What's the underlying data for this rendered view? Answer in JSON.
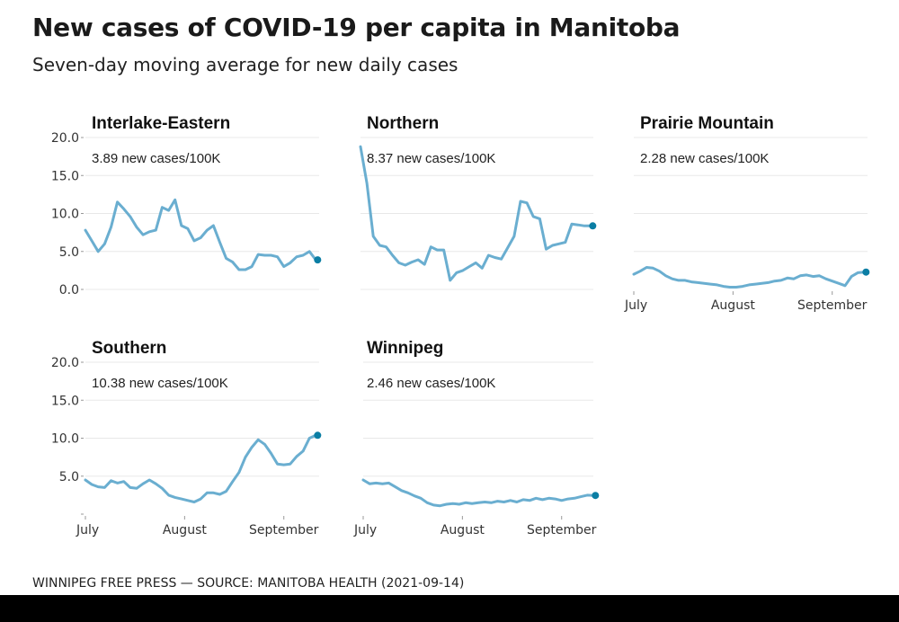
{
  "header": {
    "title": "New cases of COVID-19 per capita in Manitoba",
    "subtitle": "Seven-day moving average for new daily cases"
  },
  "footer": {
    "source": "WINNIPEG FREE PRESS — SOURCE: MANITOBA HEALTH (2021-09-14)"
  },
  "chart_data": {
    "type": "line",
    "layout": "small-multiples",
    "ylim": [
      0,
      20
    ],
    "yticks": [
      "0.0",
      "5.0",
      "10.0",
      "15.0",
      "20.0"
    ],
    "ytick_values": [
      0,
      5,
      10,
      15,
      20
    ],
    "xticks": [
      "July",
      "August",
      "September"
    ],
    "xtick_days": [
      0,
      31,
      62
    ],
    "x_unit": "days since July 1, 2021",
    "x": [
      0,
      2,
      4,
      6,
      8,
      10,
      12,
      14,
      16,
      18,
      20,
      22,
      24,
      26,
      28,
      30,
      32,
      34,
      36,
      38,
      40,
      42,
      44,
      46,
      48,
      50,
      52,
      54,
      56,
      58,
      60,
      62,
      64,
      66,
      68,
      70,
      72
    ],
    "grid": true,
    "line_color": "#6aaed0",
    "endpoint_color": "#0b7ea4",
    "panels": [
      {
        "name": "Interlake-Eastern",
        "annotation": "3.89 new cases/100K",
        "latest": 3.89,
        "values": [
          7.8,
          6.4,
          5.0,
          6.0,
          8.2,
          11.5,
          10.6,
          9.6,
          8.2,
          7.2,
          7.6,
          7.8,
          10.8,
          10.4,
          11.8,
          8.4,
          8.0,
          6.4,
          6.8,
          7.8,
          8.4,
          6.2,
          4.1,
          3.6,
          2.6,
          2.6,
          3.0,
          4.6,
          4.5,
          4.5,
          4.3,
          3.0,
          3.5,
          4.3,
          4.5,
          5.0,
          3.89
        ],
        "show_y_axis": true,
        "show_x_axis": false
      },
      {
        "name": "Northern",
        "annotation": "8.37 new cases/100K",
        "latest": 8.37,
        "values": [
          18.8,
          14.0,
          7.0,
          5.8,
          5.6,
          4.5,
          3.5,
          3.2,
          3.6,
          3.9,
          3.3,
          5.6,
          5.2,
          5.2,
          1.2,
          2.2,
          2.5,
          3.0,
          3.5,
          2.8,
          4.5,
          4.2,
          4.0,
          5.5,
          7.0,
          11.6,
          11.4,
          9.6,
          9.3,
          5.3,
          5.8,
          6.0,
          6.2,
          8.6,
          8.5,
          8.37,
          8.37
        ],
        "show_y_axis": false,
        "show_x_axis": false
      },
      {
        "name": "Prairie Mountain",
        "annotation": "2.28 new cases/100K",
        "latest": 2.28,
        "values": [
          2.0,
          2.4,
          2.9,
          2.8,
          2.4,
          1.8,
          1.4,
          1.2,
          1.2,
          1.0,
          0.9,
          0.8,
          0.7,
          0.6,
          0.4,
          0.3,
          0.3,
          0.4,
          0.6,
          0.7,
          0.8,
          0.9,
          1.1,
          1.2,
          1.5,
          1.4,
          1.8,
          1.9,
          1.7,
          1.8,
          1.4,
          1.1,
          0.8,
          0.5,
          1.7,
          2.2,
          2.28
        ],
        "show_y_axis": false,
        "show_x_axis": true
      },
      {
        "name": "Southern",
        "annotation": "10.38 new cases/100K",
        "latest": 10.38,
        "values": [
          4.5,
          3.9,
          3.6,
          3.5,
          4.4,
          4.1,
          4.3,
          3.5,
          3.4,
          4.0,
          4.5,
          4.0,
          3.4,
          2.5,
          2.2,
          2.0,
          1.8,
          1.6,
          2.0,
          2.8,
          2.8,
          2.6,
          3.0,
          4.3,
          5.5,
          7.5,
          8.8,
          9.8,
          9.2,
          8.0,
          6.6,
          6.5,
          6.6,
          7.6,
          8.3,
          10.0,
          10.38
        ],
        "show_y_axis": true,
        "show_x_axis": true
      },
      {
        "name": "Winnipeg",
        "annotation": "2.46 new cases/100K",
        "latest": 2.46,
        "values": [
          4.5,
          4.0,
          4.1,
          4.0,
          4.1,
          3.6,
          3.1,
          2.8,
          2.4,
          2.1,
          1.5,
          1.2,
          1.1,
          1.3,
          1.4,
          1.3,
          1.5,
          1.4,
          1.5,
          1.6,
          1.5,
          1.7,
          1.6,
          1.8,
          1.6,
          1.9,
          1.8,
          2.1,
          1.9,
          2.1,
          2.0,
          1.8,
          2.0,
          2.1,
          2.3,
          2.5,
          2.46
        ],
        "show_y_axis": false,
        "show_x_axis": true
      }
    ]
  }
}
